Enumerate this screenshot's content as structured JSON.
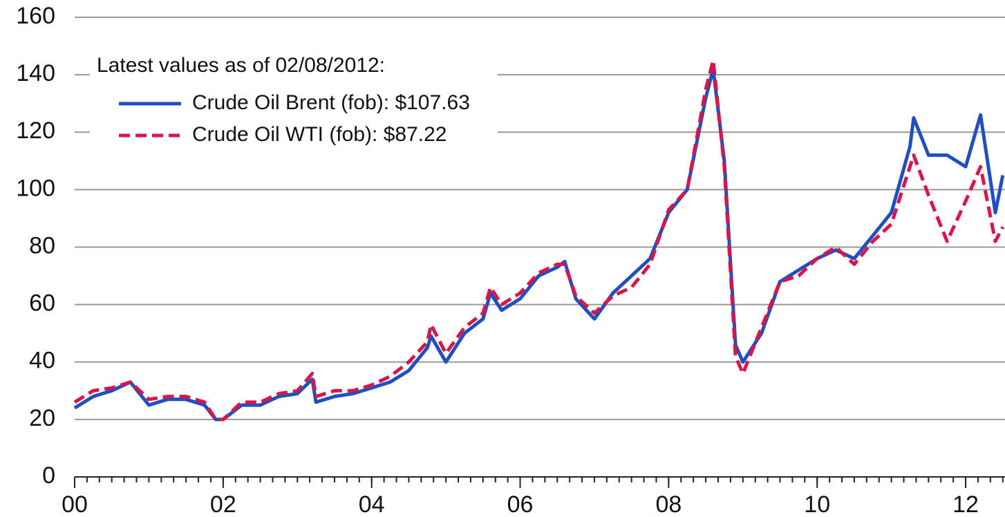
{
  "chart_data": {
    "type": "line",
    "legend_title": "Latest values as of 02/08/2012:",
    "x": [
      0,
      0.25,
      0.5,
      0.75,
      1.0,
      1.25,
      1.5,
      1.75,
      1.9,
      2.0,
      2.25,
      2.5,
      2.75,
      3.0,
      3.2,
      3.25,
      3.5,
      3.75,
      4.0,
      4.25,
      4.5,
      4.75,
      4.8,
      5.0,
      5.25,
      5.5,
      5.6,
      5.75,
      6.0,
      6.25,
      6.5,
      6.6,
      6.75,
      7.0,
      7.25,
      7.5,
      7.75,
      8.0,
      8.25,
      8.5,
      8.6,
      8.75,
      8.9,
      9.0,
      9.25,
      9.5,
      9.75,
      10.0,
      10.25,
      10.5,
      10.75,
      11.0,
      11.25,
      11.3,
      11.5,
      11.75,
      12.0,
      12.2,
      12.4,
      12.5
    ],
    "series": [
      {
        "name": "Crude Oil Brent (fob): $107.63",
        "color": "#1f4fc0",
        "line_style": "solid",
        "values": [
          24,
          28,
          30,
          33,
          25,
          27,
          27,
          25,
          20,
          20,
          25,
          25,
          28,
          29,
          34,
          26,
          28,
          29,
          31,
          33,
          37,
          45,
          49,
          40,
          50,
          55,
          64,
          58,
          62,
          70,
          73,
          75,
          62,
          55,
          64,
          70,
          76,
          92,
          100,
          132,
          142,
          110,
          46,
          40,
          50,
          68,
          72,
          76,
          79,
          76,
          84,
          92,
          115,
          125,
          112,
          112,
          108,
          126,
          92,
          105
        ]
      },
      {
        "name": "Crude Oil WTI (fob): $87.22",
        "color": "#d8164a",
        "line_style": "dashed",
        "values": [
          26,
          30,
          31,
          33,
          27,
          28,
          28,
          26,
          20,
          20,
          26,
          26,
          29,
          30,
          36,
          28,
          30,
          30,
          32,
          35,
          40,
          47,
          53,
          43,
          52,
          57,
          66,
          60,
          64,
          71,
          74,
          74,
          63,
          57,
          63,
          66,
          74,
          93,
          100,
          135,
          145,
          108,
          42,
          36,
          52,
          68,
          70,
          76,
          80,
          74,
          82,
          88,
          108,
          112,
          98,
          82,
          96,
          108,
          82,
          87
        ]
      }
    ],
    "xlim": [
      0,
      12.53
    ],
    "xticks": [
      {
        "value": 0,
        "label": "00"
      },
      {
        "value": 2,
        "label": "02"
      },
      {
        "value": 4,
        "label": "04"
      },
      {
        "value": 6,
        "label": "06"
      },
      {
        "value": 8,
        "label": "08"
      },
      10,
      12
    ],
    "ylim": [
      0,
      160
    ],
    "yticks": [
      0,
      20,
      40,
      60,
      80,
      100,
      120,
      140,
      160
    ],
    "grid": true
  }
}
